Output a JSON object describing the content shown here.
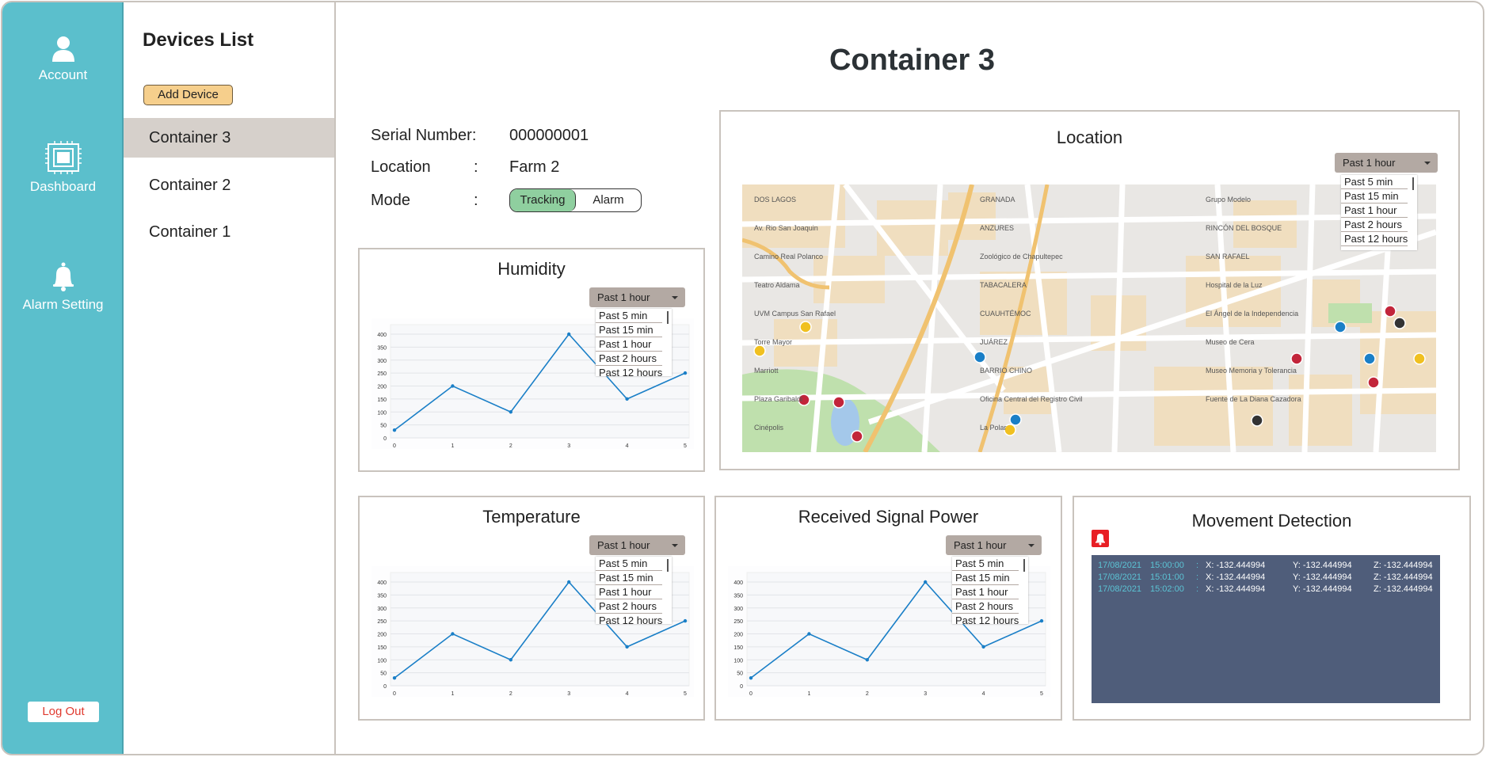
{
  "sidebar": {
    "items": [
      {
        "label": "Account",
        "icon": "user-icon"
      },
      {
        "label": "Dashboard",
        "icon": "chip-icon"
      },
      {
        "label": "Alarm Setting",
        "icon": "bell-icon"
      }
    ],
    "logout": "Log Out",
    "color": "#5bbfcc"
  },
  "devices": {
    "title": "Devices List",
    "add_label": "Add Device",
    "items": [
      "Container 3",
      "Container 2",
      "Container 1"
    ],
    "selected": "Container 3"
  },
  "main": {
    "title": "Container 3",
    "info": {
      "serial_label": "Serial Number:",
      "serial": "000000001",
      "location_label": "Location",
      "colon": ":",
      "location": "Farm 2",
      "mode_label": "Mode",
      "mode_options": [
        "Tracking",
        "Alarm"
      ],
      "mode_selected": "Tracking"
    },
    "range": {
      "selected": "Past 1 hour",
      "options": [
        "Past 5 min",
        "Past 15 min",
        "Past 1 hour",
        "Past 2 hours",
        "Past 12 hours"
      ]
    },
    "location": {
      "title": "Location",
      "map_labels": [
        "DOS LAGOS",
        "GRANADA",
        "Grupo Modelo",
        "Av. Rio San Joaquin",
        "ANZURES",
        "RINCÓN DEL BOSQUE",
        "Camino Real Polanco",
        "Zoológico de Chapultepec",
        "SAN RAFAEL",
        "Teatro Aldama",
        "TABACALERA",
        "Hospital de la Luz",
        "UVM Campus San Rafael",
        "CUAUHTÉMOC",
        "El Ángel de la Independencia",
        "Torre Mayor",
        "JUÁREZ",
        "Museo de Cera",
        "Marriott",
        "BARRIO CHINO",
        "Museo Memoria y Tolerancia",
        "Plaza Garibaldi",
        "Oficina Central del Registro Civil",
        "Fuente de La Diana Cazadora",
        "Cinépolis",
        "La Polar"
      ]
    },
    "movement": {
      "title": "Movement Detection",
      "rows": [
        {
          "date": "17/08/2021",
          "time": "15:00:00",
          "sep": ":",
          "x": "X: -132.444994",
          "y": "Y: -132.444994",
          "z": "Z: -132.444994"
        },
        {
          "date": "17/08/2021",
          "time": "15:01:00",
          "sep": ":",
          "x": "X: -132.444994",
          "y": "Y: -132.444994",
          "z": "Z: -132.444994"
        },
        {
          "date": "17/08/2021",
          "time": "15:02:00",
          "sep": ":",
          "x": "X: -132.444994",
          "y": "Y: -132.444994",
          "z": "Z: -132.444994"
        }
      ],
      "panel_color": "#4f5d7a",
      "alarm_color": "#e81f25"
    }
  },
  "chart_data": [
    {
      "type": "line",
      "title": "Humidity",
      "x": [
        0,
        1,
        2,
        3,
        4,
        5
      ],
      "values": [
        30,
        200,
        100,
        400,
        150,
        250
      ],
      "yticks": [
        0,
        50,
        100,
        150,
        200,
        250,
        300,
        350,
        400
      ],
      "ylim": [
        0,
        430
      ],
      "grid": true,
      "color": "#1a7fc7"
    },
    {
      "type": "line",
      "title": "Temperature",
      "x": [
        0,
        1,
        2,
        3,
        4,
        5
      ],
      "values": [
        30,
        200,
        100,
        400,
        150,
        250
      ],
      "yticks": [
        0,
        50,
        100,
        150,
        200,
        250,
        300,
        350,
        400
      ],
      "ylim": [
        0,
        430
      ],
      "grid": true,
      "color": "#1a7fc7"
    },
    {
      "type": "line",
      "title": "Received Signal Power",
      "x": [
        0,
        1,
        2,
        3,
        4,
        5
      ],
      "values": [
        30,
        200,
        100,
        400,
        150,
        250
      ],
      "yticks": [
        0,
        50,
        100,
        150,
        200,
        250,
        300,
        350,
        400
      ],
      "ylim": [
        0,
        430
      ],
      "grid": true,
      "color": "#1a7fc7"
    }
  ]
}
